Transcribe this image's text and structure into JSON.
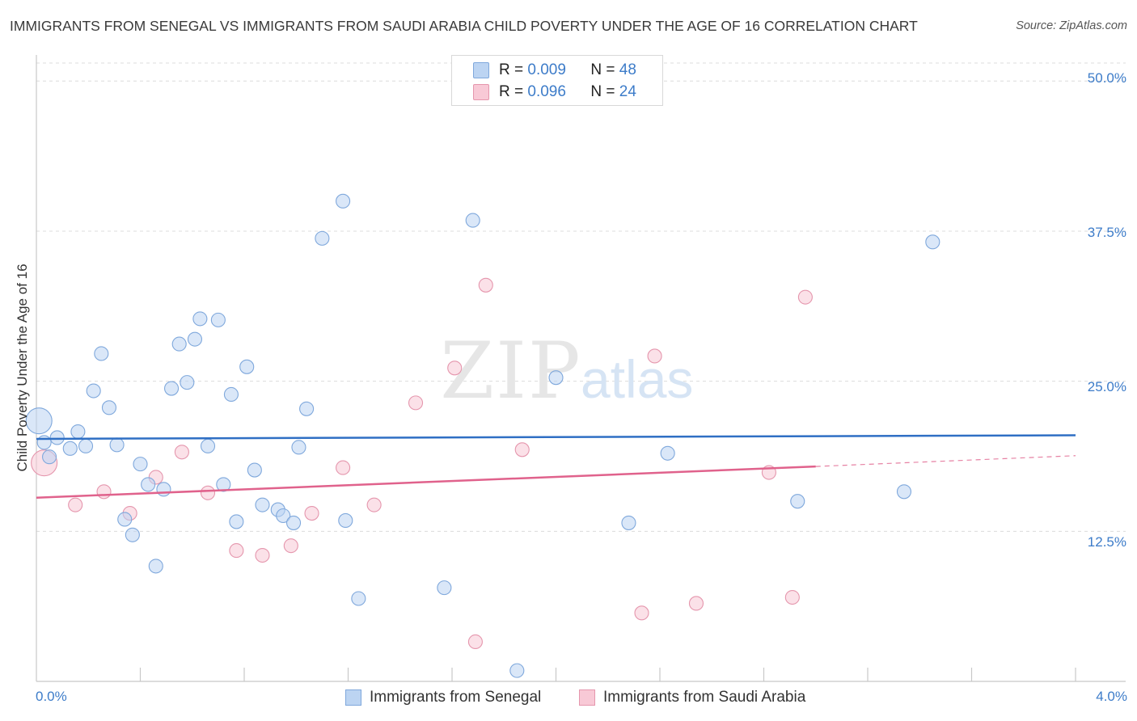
{
  "title": "IMMIGRANTS FROM SENEGAL VS IMMIGRANTS FROM SAUDI ARABIA CHILD POVERTY UNDER THE AGE OF 16 CORRELATION CHART",
  "source": "Source: ZipAtlas.com",
  "watermark": {
    "zip": "ZIP",
    "atlas": "atlas"
  },
  "legend": {
    "senegal": {
      "r_label": "R =",
      "r_value": "0.009",
      "n_label": "N =",
      "n_value": "48"
    },
    "saudi": {
      "r_label": "R =",
      "r_value": "0.096",
      "n_label": "N =",
      "n_value": "24"
    }
  },
  "colors": {
    "senegal_fill": "#bcd4f2",
    "senegal_stroke": "#7fa8dc",
    "senegal_line": "#2f6fc4",
    "saudi_fill": "#f8c9d6",
    "saudi_stroke": "#e596ad",
    "saudi_line": "#e0628c",
    "accent_text": "#3d7cc9"
  },
  "chart_data": {
    "type": "scatter",
    "title": "IMMIGRANTS FROM SENEGAL VS IMMIGRANTS FROM SAUDI ARABIA CHILD POVERTY UNDER THE AGE OF 16 CORRELATION CHART",
    "xlabel": "",
    "ylabel": "Child Poverty Under the Age of 16",
    "xlim": [
      0,
      4
    ],
    "ylim": [
      0,
      51.5
    ],
    "x_tick_labels": [
      "0.0%",
      "4.0%"
    ],
    "y_ticks": [
      12.5,
      25.0,
      37.5,
      50.0
    ],
    "y_tick_labels": [
      "12.5%",
      "25.0%",
      "37.5%",
      "50.0%"
    ],
    "grid": true,
    "series": [
      {
        "name": "Immigrants from Senegal",
        "trend": {
          "x": [
            0.0,
            4.0
          ],
          "y": [
            20.2,
            20.5
          ]
        },
        "points": [
          [
            0.01,
            21.7,
            2
          ],
          [
            0.05,
            18.7,
            1
          ],
          [
            0.08,
            20.3,
            1
          ],
          [
            0.13,
            19.4,
            1
          ],
          [
            0.16,
            20.8,
            1
          ],
          [
            0.19,
            19.6,
            1
          ],
          [
            0.22,
            24.2,
            1
          ],
          [
            0.25,
            27.3,
            1
          ],
          [
            0.28,
            22.8,
            1
          ],
          [
            0.31,
            19.7,
            1
          ],
          [
            0.34,
            13.5,
            1
          ],
          [
            0.37,
            12.2,
            1
          ],
          [
            0.4,
            18.1,
            1
          ],
          [
            0.43,
            16.4,
            1
          ],
          [
            0.46,
            9.6,
            1
          ],
          [
            0.49,
            16.0,
            1
          ],
          [
            0.52,
            24.4,
            1
          ],
          [
            0.55,
            28.1,
            1
          ],
          [
            0.58,
            24.9,
            1
          ],
          [
            0.61,
            28.5,
            1
          ],
          [
            0.63,
            30.2,
            1
          ],
          [
            0.66,
            19.6,
            1
          ],
          [
            0.7,
            30.1,
            1
          ],
          [
            0.72,
            16.4,
            1
          ],
          [
            0.75,
            23.9,
            1
          ],
          [
            0.77,
            13.3,
            1
          ],
          [
            0.81,
            26.2,
            1
          ],
          [
            0.84,
            17.6,
            1
          ],
          [
            0.87,
            14.7,
            1
          ],
          [
            0.93,
            14.3,
            1
          ],
          [
            0.95,
            13.8,
            1
          ],
          [
            0.99,
            13.2,
            1
          ],
          [
            1.01,
            19.5,
            1
          ],
          [
            1.04,
            22.7,
            1
          ],
          [
            1.1,
            36.9,
            1
          ],
          [
            1.18,
            40.0,
            1
          ],
          [
            1.19,
            13.4,
            1
          ],
          [
            1.24,
            6.9,
            1
          ],
          [
            1.57,
            7.8,
            1
          ],
          [
            1.68,
            38.4,
            1
          ],
          [
            1.85,
            0.9,
            1
          ],
          [
            2.0,
            25.3,
            1
          ],
          [
            2.28,
            13.2,
            1
          ],
          [
            2.43,
            19.0,
            1
          ],
          [
            2.93,
            15.0,
            1
          ],
          [
            3.34,
            15.8,
            1
          ],
          [
            3.45,
            36.6,
            1
          ],
          [
            0.03,
            19.9,
            1
          ]
        ]
      },
      {
        "name": "Immigrants from Saudi Arabia",
        "trend": {
          "x": [
            0.0,
            3.0
          ],
          "y": [
            15.3,
            17.9
          ]
        },
        "trend_dashed": {
          "x": [
            3.0,
            4.0
          ],
          "y": [
            17.9,
            18.8
          ]
        },
        "points": [
          [
            0.03,
            18.2,
            2
          ],
          [
            0.15,
            14.7,
            1
          ],
          [
            0.26,
            15.8,
            1
          ],
          [
            0.36,
            14.0,
            1
          ],
          [
            0.46,
            17.0,
            1
          ],
          [
            0.56,
            19.1,
            1
          ],
          [
            0.66,
            15.7,
            1
          ],
          [
            0.77,
            10.9,
            1
          ],
          [
            0.87,
            10.5,
            1
          ],
          [
            0.98,
            11.3,
            1
          ],
          [
            1.06,
            14.0,
            1
          ],
          [
            1.18,
            17.8,
            1
          ],
          [
            1.3,
            14.7,
            1
          ],
          [
            1.46,
            23.2,
            1
          ],
          [
            1.61,
            26.1,
            1
          ],
          [
            1.69,
            3.3,
            1
          ],
          [
            1.73,
            33.0,
            1
          ],
          [
            1.87,
            19.3,
            1
          ],
          [
            2.33,
            5.7,
            1
          ],
          [
            2.38,
            27.1,
            1
          ],
          [
            2.54,
            6.5,
            1
          ],
          [
            2.82,
            17.4,
            1
          ],
          [
            2.91,
            7.0,
            1
          ],
          [
            2.96,
            32.0,
            1
          ]
        ]
      }
    ]
  },
  "bottom_legend": {
    "senegal": "Immigrants from Senegal",
    "saudi": "Immigrants from Saudi Arabia"
  }
}
